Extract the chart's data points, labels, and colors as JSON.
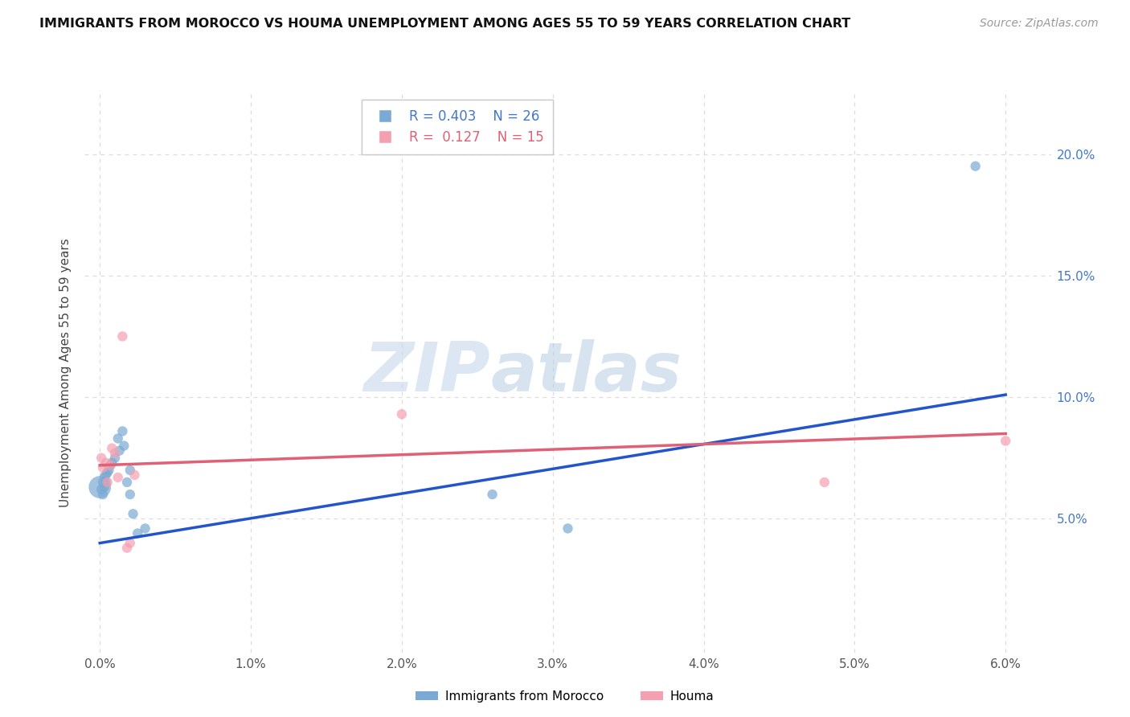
{
  "title": "IMMIGRANTS FROM MOROCCO VS HOUMA UNEMPLOYMENT AMONG AGES 55 TO 59 YEARS CORRELATION CHART",
  "source": "Source: ZipAtlas.com",
  "ylabel": "Unemployment Among Ages 55 to 59 years",
  "xlim": [
    -0.001,
    0.063
  ],
  "ylim": [
    -0.005,
    0.225
  ],
  "x_ticks": [
    0.0,
    0.01,
    0.02,
    0.03,
    0.04,
    0.05,
    0.06
  ],
  "x_tick_labels": [
    "0.0%",
    "1.0%",
    "2.0%",
    "3.0%",
    "4.0%",
    "5.0%",
    "6.0%"
  ],
  "y_ticks": [
    0.05,
    0.1,
    0.15,
    0.2
  ],
  "y_tick_labels": [
    "5.0%",
    "10.0%",
    "15.0%",
    "20.0%"
  ],
  "blue_R": "0.403",
  "blue_N": "26",
  "pink_R": "0.127",
  "pink_N": "15",
  "blue_scatter_x": [
    0.0,
    0.0001,
    0.0002,
    0.0002,
    0.0003,
    0.0003,
    0.0004,
    0.0004,
    0.0005,
    0.0006,
    0.0007,
    0.0008,
    0.001,
    0.0012,
    0.0013,
    0.0015,
    0.0016,
    0.0018,
    0.002,
    0.002,
    0.0022,
    0.0025,
    0.003,
    0.026,
    0.031,
    0.058
  ],
  "blue_scatter_y": [
    0.063,
    0.062,
    0.06,
    0.065,
    0.067,
    0.063,
    0.065,
    0.068,
    0.069,
    0.07,
    0.072,
    0.073,
    0.075,
    0.083,
    0.078,
    0.086,
    0.08,
    0.065,
    0.07,
    0.06,
    0.052,
    0.044,
    0.046,
    0.06,
    0.046,
    0.195
  ],
  "blue_scatter_sizes": [
    400,
    80,
    80,
    80,
    80,
    80,
    80,
    80,
    80,
    80,
    80,
    80,
    80,
    80,
    80,
    80,
    80,
    80,
    80,
    80,
    80,
    80,
    80,
    80,
    80,
    80
  ],
  "pink_scatter_x": [
    0.0001,
    0.0002,
    0.0004,
    0.0005,
    0.0007,
    0.0008,
    0.001,
    0.0012,
    0.0015,
    0.0018,
    0.002,
    0.0023,
    0.02,
    0.048,
    0.06
  ],
  "pink_scatter_y": [
    0.075,
    0.071,
    0.073,
    0.065,
    0.072,
    0.079,
    0.077,
    0.067,
    0.125,
    0.038,
    0.04,
    0.068,
    0.093,
    0.065,
    0.082
  ],
  "pink_scatter_sizes": [
    80,
    80,
    80,
    80,
    80,
    80,
    80,
    80,
    80,
    80,
    80,
    80,
    80,
    80,
    80
  ],
  "blue_line_x": [
    0.0,
    0.06
  ],
  "blue_line_y": [
    0.04,
    0.101
  ],
  "pink_line_x": [
    0.0,
    0.06
  ],
  "pink_line_y": [
    0.072,
    0.085
  ],
  "blue_color": "#7aaad4",
  "pink_color": "#f4a0b0",
  "blue_line_color": "#2255cc",
  "pink_line_color": "#e06075",
  "watermark_zip": "ZIP",
  "watermark_atlas": "atlas",
  "legend_label_blue": "Immigrants from Morocco",
  "legend_label_pink": "Houma",
  "right_axis_color": "#4477cc",
  "grid_color": "#dddddd",
  "background_color": "#ffffff"
}
